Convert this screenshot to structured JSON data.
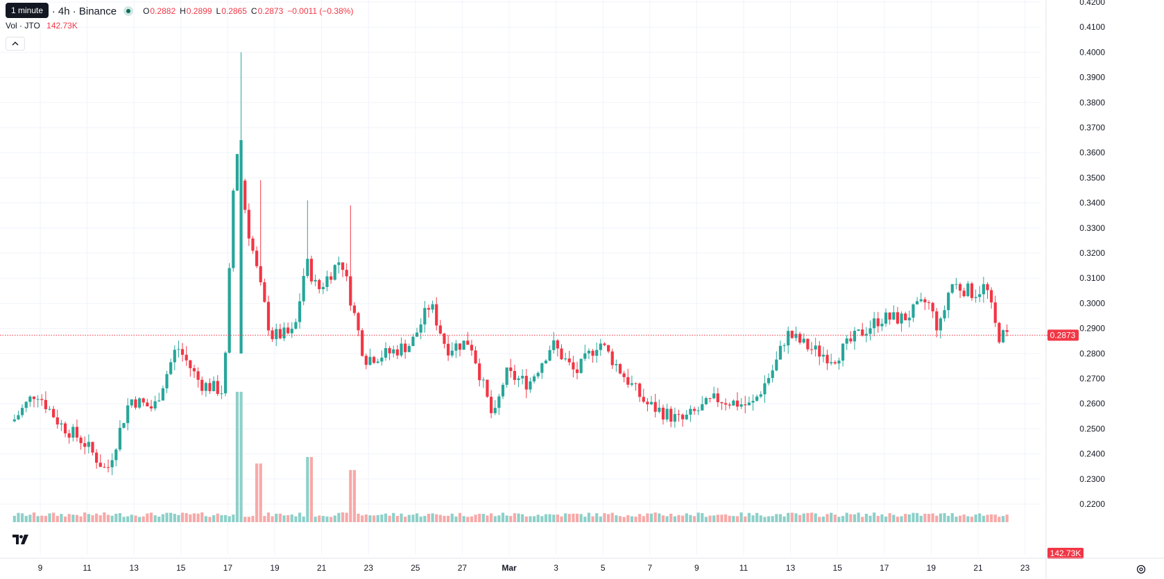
{
  "legend": {
    "symbol": "TetherUS · 4h · Binance",
    "tooltip": "1 minute",
    "ohlc": {
      "o_label": "O",
      "o_value": "0.2882",
      "h_label": "H",
      "h_value": "0.2899",
      "l_label": "L",
      "l_value": "0.2865",
      "c_label": "C",
      "c_value": "0.2873",
      "change": "−0.0011 (−0.38%)"
    },
    "volume_label": "Vol · JTO",
    "volume_value": "142.73K"
  },
  "price_axis": {
    "labels": [
      "0.4200",
      "0.4100",
      "0.4000",
      "0.3900",
      "0.3800",
      "0.3700",
      "0.3600",
      "0.3500",
      "0.3400",
      "0.3300",
      "0.3200",
      "0.3100",
      "0.3000",
      "0.2900",
      "0.2800",
      "0.2700",
      "0.2600",
      "0.2500",
      "0.2400",
      "0.2300",
      "0.2200"
    ],
    "last_price": "0.2873",
    "last_volume": "142.73K"
  },
  "time_axis": {
    "labels": [
      "9",
      "11",
      "13",
      "15",
      "17",
      "19",
      "21",
      "23",
      "25",
      "27",
      "Mar",
      "3",
      "5",
      "7",
      "9",
      "11",
      "13",
      "15",
      "17",
      "19",
      "21",
      "23"
    ]
  },
  "colors": {
    "up": "#26a69a",
    "down": "#f23645",
    "up_volume": "#8dd0c9",
    "down_volume": "#f7a9a8",
    "grid": "#f0f3fa",
    "last_price_line": "#f23645"
  },
  "chart_data": {
    "type": "candlestick",
    "interval": "4h",
    "ylim": [
      0.215,
      0.421
    ],
    "keypoints": [
      [
        "Feb 8",
        0.253
      ],
      [
        "Feb 9",
        0.265
      ],
      [
        "Feb 10",
        0.252
      ],
      [
        "Feb 11",
        0.245
      ],
      [
        "Feb 12",
        0.233
      ],
      [
        "Feb 13",
        0.262
      ],
      [
        "Feb 14",
        0.258
      ],
      [
        "Feb 15",
        0.283
      ],
      [
        "Feb 16",
        0.268
      ],
      [
        "Feb 17",
        0.265
      ],
      [
        "Feb 17.5",
        0.365
      ],
      [
        "Feb 18",
        0.331
      ],
      [
        "Feb 19",
        0.287
      ],
      [
        "Feb 20",
        0.288
      ],
      [
        "Feb 20.5",
        0.317
      ],
      [
        "Feb 21",
        0.305
      ],
      [
        "Feb 22",
        0.318
      ],
      [
        "Feb 23",
        0.278
      ],
      [
        "Feb 24",
        0.28
      ],
      [
        "Feb 25",
        0.284
      ],
      [
        "Feb 25.8",
        0.3
      ],
      [
        "Feb 26.5",
        0.282
      ],
      [
        "Feb 27.5",
        0.285
      ],
      [
        "Feb 28.5",
        0.253
      ],
      [
        "Mar 1",
        0.272
      ],
      [
        "Mar 2",
        0.268
      ],
      [
        "Mar 3",
        0.284
      ],
      [
        "Mar 4",
        0.272
      ],
      [
        "Mar 5",
        0.285
      ],
      [
        "Mar 6",
        0.272
      ],
      [
        "Mar 7",
        0.26
      ],
      [
        "Mar 8.5",
        0.253
      ],
      [
        "Mar 10",
        0.262
      ],
      [
        "Mar 11.5",
        0.259
      ],
      [
        "Mar 12.5",
        0.275
      ],
      [
        "Mar 13",
        0.288
      ],
      [
        "Mar 14",
        0.282
      ],
      [
        "Mar 15",
        0.278
      ],
      [
        "Mar 16",
        0.287
      ],
      [
        "Mar 17",
        0.294
      ],
      [
        "Mar 18",
        0.294
      ],
      [
        "Mar 19",
        0.301
      ],
      [
        "Mar 19.5",
        0.289
      ],
      [
        "Mar 20",
        0.308
      ],
      [
        "Mar 21",
        0.304
      ],
      [
        "Mar 21.5",
        0.307
      ],
      [
        "Mar 22",
        0.287
      ]
    ],
    "volume_spikes": [
      [
        "Feb 17.5",
        1.0
      ],
      [
        "Feb 18.3",
        0.45
      ],
      [
        "Feb 20.5",
        0.5
      ],
      [
        "Feb 22.3",
        0.4
      ]
    ]
  }
}
